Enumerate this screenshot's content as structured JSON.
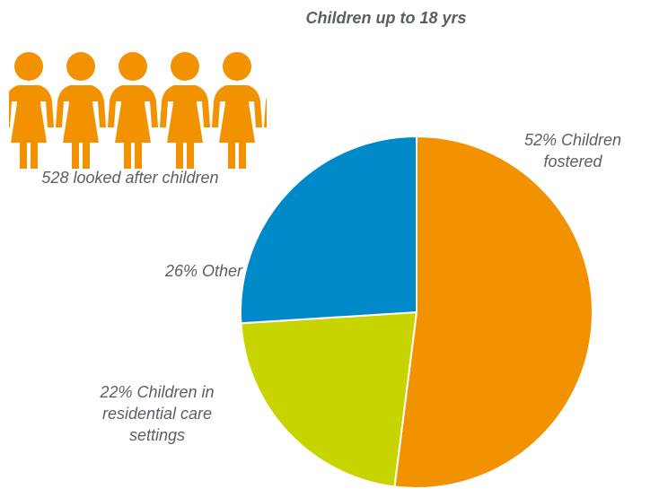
{
  "chart_data": {
    "type": "pie",
    "title": "Children up to 18 yrs",
    "slices": [
      {
        "label": "Children fostered",
        "value": 52,
        "color": "#f39200"
      },
      {
        "label": "Children in residential care settings",
        "value": 22,
        "color": "#c8d400"
      },
      {
        "label": "Other",
        "value": 26,
        "color": "#0089c9"
      }
    ],
    "start_angle_deg": 0,
    "direction": "clockwise"
  },
  "labels": {
    "fostered": [
      "52% Children",
      "fostered"
    ],
    "other": [
      "26% Other"
    ],
    "residential": [
      "22% Children in",
      "residential care",
      "settings"
    ]
  },
  "looked_after": {
    "caption": "528 looked after children",
    "icon": "child-figure-icon",
    "color": "#f39200"
  }
}
